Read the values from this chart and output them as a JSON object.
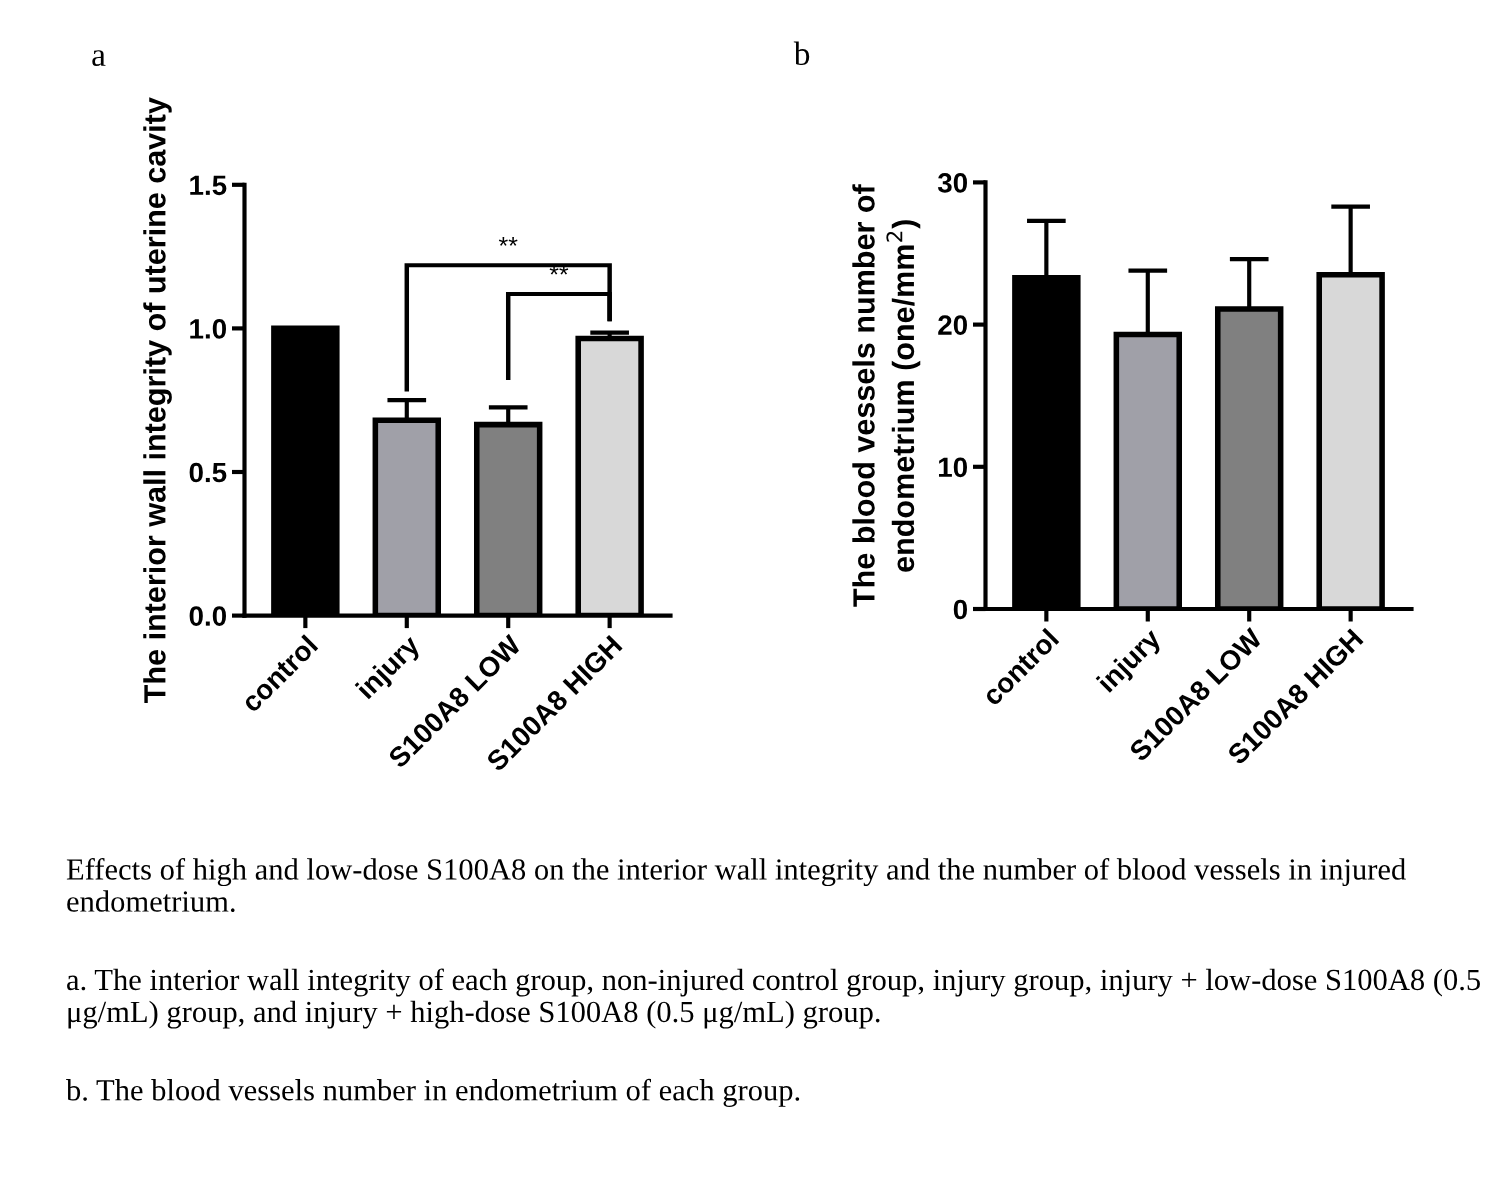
{
  "chart_data": [
    {
      "type": "bar",
      "title": "a",
      "ylabel": "The interior wall integrity of uterine cavity",
      "categories": [
        "control",
        "injury",
        "S100A8 LOW",
        "S100A8 HIGH"
      ],
      "values": [
        1.0,
        0.68,
        0.665,
        0.965
      ],
      "colors": [
        "#000000",
        "#a0a0a8",
        "#808080",
        "#d8d8d8"
      ],
      "errors": [
        null,
        [
          0.68,
          0.75
        ],
        [
          0.665,
          0.725
        ],
        [
          0.965,
          0.985
        ]
      ],
      "ylim": [
        0,
        1.5
      ],
      "yticks": [
        {
          "value": 0,
          "label": "0.0"
        },
        {
          "value": 0.5,
          "label": "0.5"
        },
        {
          "value": 1.0,
          "label": "1.0"
        },
        {
          "value": 1.5,
          "label": "1.5"
        }
      ],
      "grid": false,
      "legend": false,
      "annotations": [
        "**",
        "**"
      ]
    },
    {
      "type": "bar",
      "title": "b",
      "ylabel": "The blood vessels number of endometrium (one/mm$^{2}$)",
      "categories": [
        "control",
        "injury",
        "S100A8 LOW",
        "S100A8 HIGH"
      ],
      "values": [
        23.3,
        19.3,
        21.1,
        23.5
      ],
      "colors": [
        "#000000",
        "#a0a0a8",
        "#808080",
        "#d8d8d8"
      ],
      "errors": [
        [
          23.3,
          27.3
        ],
        [
          19.3,
          23.8
        ],
        [
          21.1,
          24.6
        ],
        [
          23.5,
          28.3
        ]
      ],
      "ylim": [
        0,
        30
      ],
      "yticks": [
        0,
        10,
        20,
        30
      ],
      "grid": false,
      "legend": false,
      "annotations": [
        "Effects of high and low-dose S100A8 on the interior wall integrity and the number of blood vessels in injured endometrium.",
        "a. The interior wall integrity of each group, non-injured control group, injury group, injury + low-dose S100A8 (0.5 μg/mL) group, and injury + high-dose S100A8 (0.5 μg/mL) group.",
        "b. The blood vessels number in endometrium of each group."
      ]
    }
  ]
}
